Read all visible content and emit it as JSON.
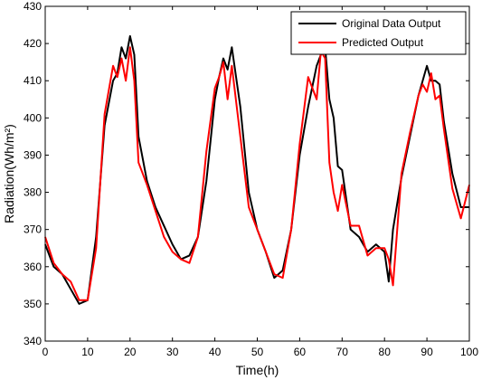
{
  "chart_data": {
    "type": "line",
    "title": "",
    "xlabel": "Time(h)",
    "ylabel": "Radiation(Wh/m²)",
    "xlim": [
      0,
      100
    ],
    "ylim": [
      340,
      430
    ],
    "xticks": [
      0,
      10,
      20,
      30,
      40,
      50,
      60,
      70,
      80,
      90,
      100
    ],
    "yticks": [
      340,
      350,
      360,
      370,
      380,
      390,
      400,
      410,
      420,
      430
    ],
    "grid": false,
    "legend_position": "top-right",
    "series": [
      {
        "name": "Original Data Output",
        "color": "#000000",
        "x": [
          0,
          2,
          4,
          6,
          8,
          10,
          12,
          14,
          16,
          17,
          18,
          19,
          20,
          21,
          22,
          24,
          26,
          28,
          30,
          32,
          34,
          36,
          38,
          40,
          41,
          42,
          43,
          44,
          46,
          48,
          50,
          52,
          54,
          56,
          58,
          60,
          62,
          64,
          65,
          66,
          67,
          68,
          69,
          70,
          72,
          74,
          76,
          78,
          80,
          81,
          82,
          84,
          86,
          88,
          89,
          90,
          91,
          92,
          93,
          94,
          96,
          98,
          100
        ],
        "values": [
          366,
          360,
          358,
          354,
          350,
          351,
          368,
          398,
          410,
          412,
          419,
          416,
          422,
          417,
          395,
          383,
          376,
          371,
          366,
          362,
          363,
          368,
          383,
          405,
          411,
          416,
          413,
          419,
          403,
          380,
          370,
          364,
          357,
          359,
          370,
          390,
          403,
          414,
          417,
          419,
          405,
          400,
          387,
          386,
          370,
          368,
          364,
          366,
          364,
          356,
          370,
          384,
          395,
          406,
          410,
          414,
          410,
          410,
          409,
          399,
          385,
          376,
          376
        ]
      },
      {
        "name": "Predicted Output",
        "color": "#ff0000",
        "x": [
          0,
          2,
          4,
          6,
          8,
          10,
          12,
          14,
          16,
          17,
          18,
          19,
          20,
          21,
          22,
          24,
          26,
          28,
          30,
          32,
          34,
          36,
          38,
          40,
          41,
          42,
          43,
          44,
          46,
          48,
          50,
          52,
          54,
          56,
          58,
          60,
          62,
          64,
          65,
          66,
          67,
          68,
          69,
          70,
          72,
          74,
          76,
          78,
          80,
          81,
          82,
          84,
          86,
          88,
          89,
          90,
          91,
          92,
          93,
          94,
          96,
          98,
          100
        ],
        "values": [
          368,
          361,
          358,
          356,
          351,
          351,
          365,
          401,
          414,
          411,
          416,
          410,
          419,
          410,
          388,
          382,
          375,
          368,
          364,
          362,
          361,
          368,
          391,
          408,
          411,
          415,
          405,
          414,
          395,
          376,
          370,
          364,
          358,
          357,
          370,
          393,
          411,
          405,
          418,
          416,
          388,
          380,
          375,
          382,
          371,
          371,
          363,
          365,
          365,
          362,
          355,
          385,
          396,
          406,
          409,
          407,
          412,
          405,
          406,
          397,
          381,
          373,
          382
        ]
      }
    ]
  }
}
